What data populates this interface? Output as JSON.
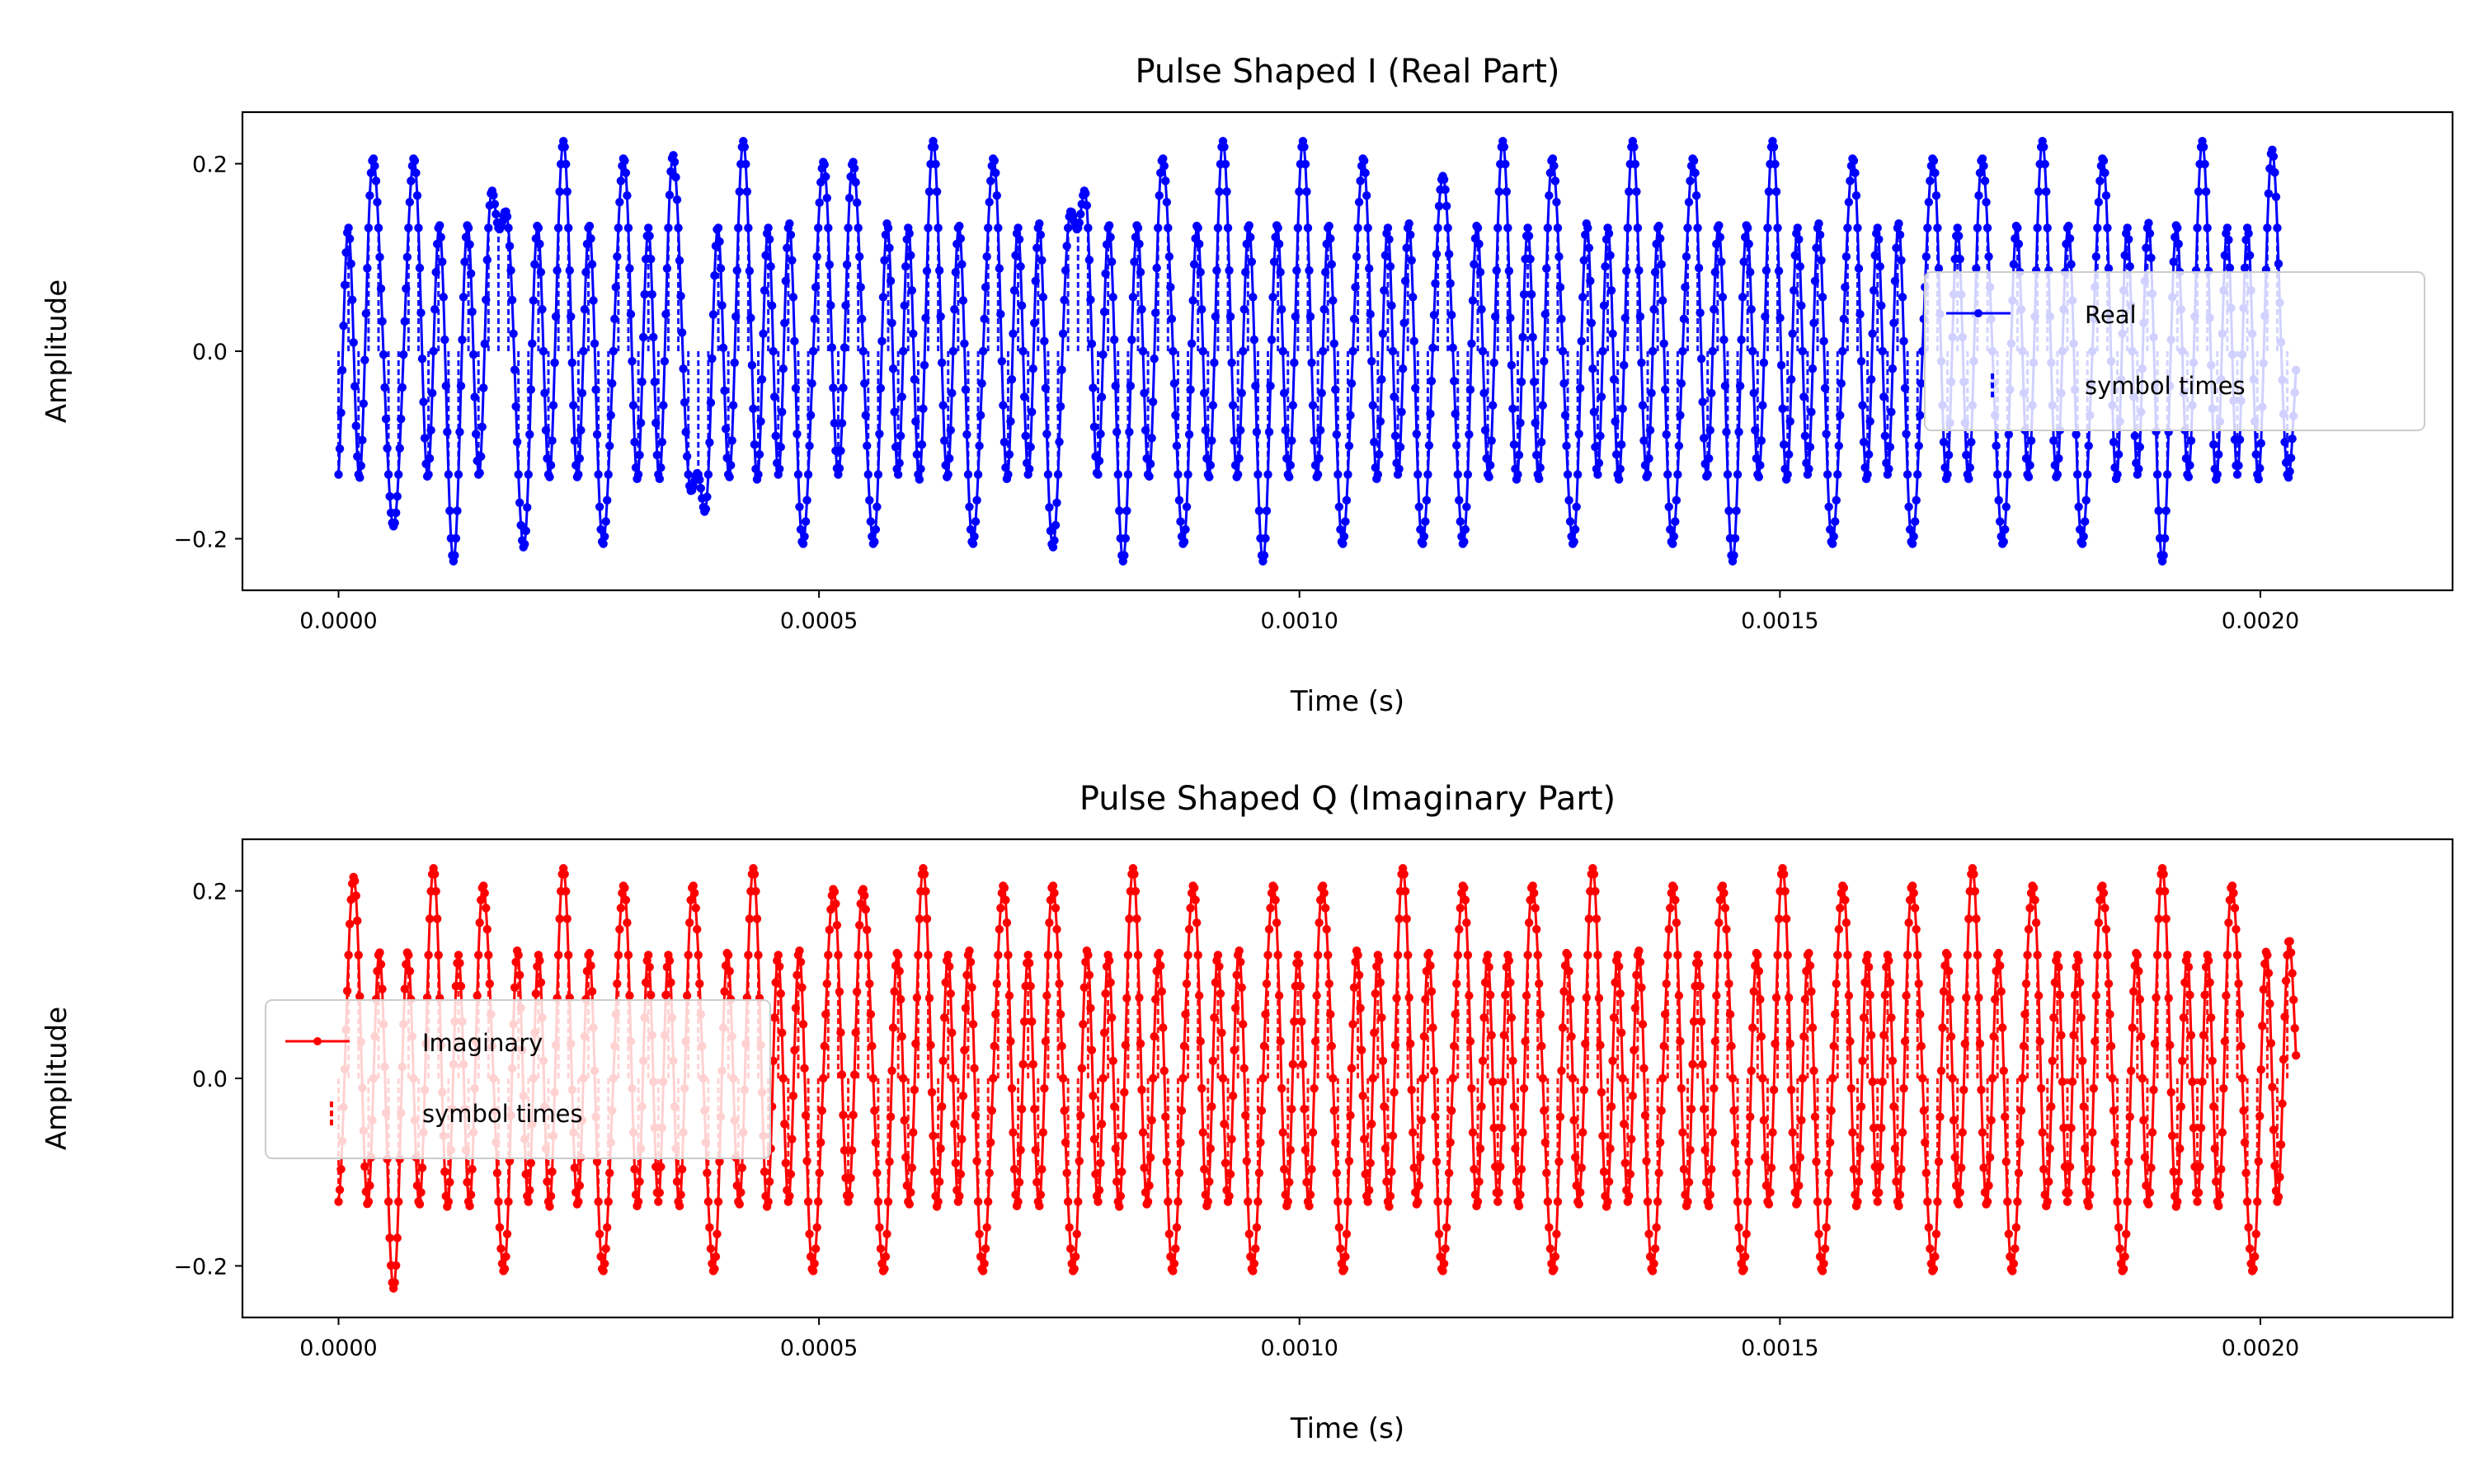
{
  "chart_data": [
    {
      "type": "line",
      "title": "Pulse Shaped I (Real Part)",
      "xlabel": "Time (s)",
      "ylabel": "Amplitude",
      "xlim": [
        -0.0001,
        0.0022
      ],
      "ylim": [
        -0.255,
        0.255
      ],
      "xticks": [
        0.0,
        0.0005,
        0.001,
        0.0015,
        0.002
      ],
      "xtick_labels": [
        "0.0000",
        "0.0005",
        "0.0010",
        "0.0015",
        "0.0020"
      ],
      "yticks": [
        -0.2,
        0.0,
        0.2
      ],
      "ytick_labels": [
        "−0.2",
        "0.0",
        "0.2"
      ],
      "grid": false,
      "legend_position": "right",
      "color": "#0000ff",
      "symbol_period": 1.04e-05,
      "sample_period": 1.3e-06,
      "peak_amplitude": 0.2,
      "series": [
        {
          "name": "Real",
          "style": "line-with-dot-markers"
        },
        {
          "name": "symbol times",
          "style": "vertical-dashed-stems"
        }
      ],
      "symbols": [
        -1,
        1,
        -1,
        1,
        1,
        -1,
        -1,
        1,
        1,
        -1,
        1,
        -1,
        -1,
        1,
        -1,
        1,
        1,
        1,
        -1,
        -1,
        1,
        -1,
        1,
        1,
        -1,
        1,
        -1,
        -1,
        1,
        1,
        -1,
        1,
        -1,
        1,
        1,
        -1,
        -1,
        -1,
        1,
        -1,
        1,
        1,
        -1,
        1,
        -1,
        1,
        -1,
        -1,
        1,
        1,
        -1,
        1,
        1,
        -1,
        -1,
        1,
        -1,
        1,
        -1,
        1,
        1,
        -1,
        1,
        -1,
        -1,
        1,
        1,
        -1,
        1,
        -1,
        1,
        -1,
        -1,
        1,
        1,
        1,
        -1,
        1,
        -1,
        -1,
        1,
        -1,
        1,
        1,
        -1,
        -1,
        1,
        -1,
        1,
        1,
        -1,
        1,
        -1,
        -1,
        1,
        -1,
        1,
        1,
        -1,
        1,
        -1,
        -1,
        1,
        1,
        -1,
        1,
        -1,
        1,
        -1,
        -1,
        1,
        1,
        -1,
        -1,
        1,
        -1,
        1,
        1,
        -1,
        1,
        -1,
        1,
        1,
        -1,
        -1,
        1,
        -1,
        1,
        -1,
        1,
        1,
        -1,
        1,
        -1,
        -1,
        1,
        1,
        -1,
        1,
        -1,
        -1,
        1,
        -1,
        1,
        1,
        -1,
        1,
        -1,
        1,
        -1,
        -1,
        1,
        1,
        -1,
        1,
        -1,
        1,
        -1,
        -1,
        1,
        1,
        -1,
        1,
        -1,
        1,
        1,
        -1,
        -1,
        1,
        -1,
        1,
        1,
        -1,
        1,
        -1,
        -1,
        1,
        1,
        -1,
        1,
        -1,
        1,
        -1,
        -1,
        1,
        -1,
        1,
        1,
        -1,
        1,
        -1,
        1,
        -1,
        1,
        1,
        -1
      ]
    },
    {
      "type": "line",
      "title": "Pulse Shaped Q (Imaginary Part)",
      "xlabel": "Time (s)",
      "ylabel": "Amplitude",
      "xlim": [
        -0.0001,
        0.0022
      ],
      "ylim": [
        -0.255,
        0.255
      ],
      "xticks": [
        0.0,
        0.0005,
        0.001,
        0.0015,
        0.002
      ],
      "xtick_labels": [
        "0.0000",
        "0.0005",
        "0.0010",
        "0.0015",
        "0.0020"
      ],
      "yticks": [
        -0.2,
        0.0,
        0.2
      ],
      "ytick_labels": [
        "−0.2",
        "0.0",
        "0.2"
      ],
      "grid": false,
      "legend_position": "left",
      "color": "#ff0000",
      "symbol_period": 1.04e-05,
      "sample_period": 1.3e-06,
      "peak_amplitude": 0.2,
      "series": [
        {
          "name": "Imaginary",
          "style": "line-with-dot-markers"
        },
        {
          "name": "symbol times",
          "style": "vertical-dashed-stems"
        }
      ],
      "symbols": [
        -1,
        1,
        1,
        -1,
        1,
        -1,
        -1,
        1,
        -1,
        1,
        1,
        -1,
        1,
        -1,
        1,
        1,
        -1,
        -1,
        1,
        -1,
        1,
        -1,
        1,
        1,
        -1,
        1,
        -1,
        -1,
        1,
        1,
        -1,
        1,
        -1,
        1,
        -1,
        1,
        1,
        -1,
        -1,
        1,
        -1,
        1,
        1,
        -1,
        1,
        -1,
        1,
        -1,
        -1,
        1,
        1,
        -1,
        1,
        1,
        -1,
        -1,
        1,
        -1,
        1,
        1,
        -1,
        1,
        -1,
        1,
        -1,
        -1,
        1,
        1,
        -1,
        1,
        -1,
        1,
        1,
        -1,
        -1,
        1,
        -1,
        1,
        -1,
        1,
        1,
        -1,
        1,
        -1,
        -1,
        1,
        1,
        -1,
        1,
        -1,
        1,
        -1,
        -1,
        1,
        1,
        -1,
        1,
        -1,
        1,
        1,
        -1,
        -1,
        1,
        -1,
        1,
        -1,
        1,
        1,
        -1,
        1,
        -1,
        -1,
        1,
        1,
        -1,
        1,
        -1,
        1,
        -1,
        1,
        1,
        -1,
        -1,
        1,
        -1,
        1,
        1,
        -1,
        1,
        -1,
        1,
        -1,
        -1,
        1,
        1,
        -1,
        1,
        -1,
        1,
        1,
        -1,
        -1,
        1,
        -1,
        1,
        1,
        -1,
        1,
        -1,
        -1,
        1,
        1,
        -1,
        1,
        -1,
        1,
        -1,
        1,
        1,
        -1,
        -1,
        1,
        -1,
        1,
        1,
        -1,
        1,
        -1,
        -1,
        1,
        1,
        -1,
        1,
        -1,
        1,
        -1,
        1,
        1,
        -1,
        -1,
        1,
        -1,
        1,
        1,
        -1,
        1,
        -1,
        1,
        -1,
        1,
        1,
        -1,
        -1,
        1,
        -1,
        1
      ]
    }
  ]
}
